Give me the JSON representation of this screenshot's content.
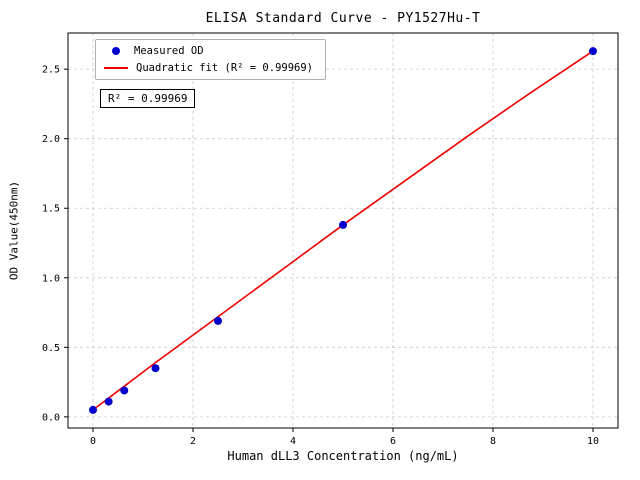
{
  "chart_data": {
    "type": "scatter",
    "title": "ELISA Standard Curve - PY1527Hu-T",
    "xlabel": "Human dLL3 Concentration (ng/mL)",
    "ylabel": "OD Value(450nm)",
    "xlim": [
      -0.5,
      10.5
    ],
    "ylim": [
      -0.08,
      2.76
    ],
    "xticks": [
      0,
      2,
      4,
      6,
      8,
      10
    ],
    "xtick_labels": [
      "0",
      "2",
      "4",
      "6",
      "8",
      "10"
    ],
    "yticks": [
      0,
      0.5,
      1,
      1.5,
      2,
      2.5
    ],
    "ytick_labels": [
      "0.0",
      "0.5",
      "1.0",
      "1.5",
      "2.0",
      "2.5"
    ],
    "grid": true,
    "legend_position": "upper left",
    "annotation": "R² = 0.99969",
    "series": [
      {
        "name": "Measured OD",
        "type": "scatter",
        "color": "#0000cd",
        "x": [
          0,
          0.3125,
          0.625,
          1.25,
          2.5,
          5,
          10
        ],
        "y": [
          0.05,
          0.11,
          0.19,
          0.35,
          0.69,
          1.38,
          2.63
        ]
      },
      {
        "name": "Quadratic fit (R² = 0.99969)",
        "type": "line",
        "color": "#ee0000",
        "x": [
          0,
          1.25,
          2.5,
          3.75,
          5,
          6.25,
          7.5,
          8.75,
          10
        ],
        "y": [
          0.05,
          0.39,
          0.72,
          1.05,
          1.38,
          1.7,
          2.02,
          2.33,
          2.63
        ]
      }
    ]
  }
}
